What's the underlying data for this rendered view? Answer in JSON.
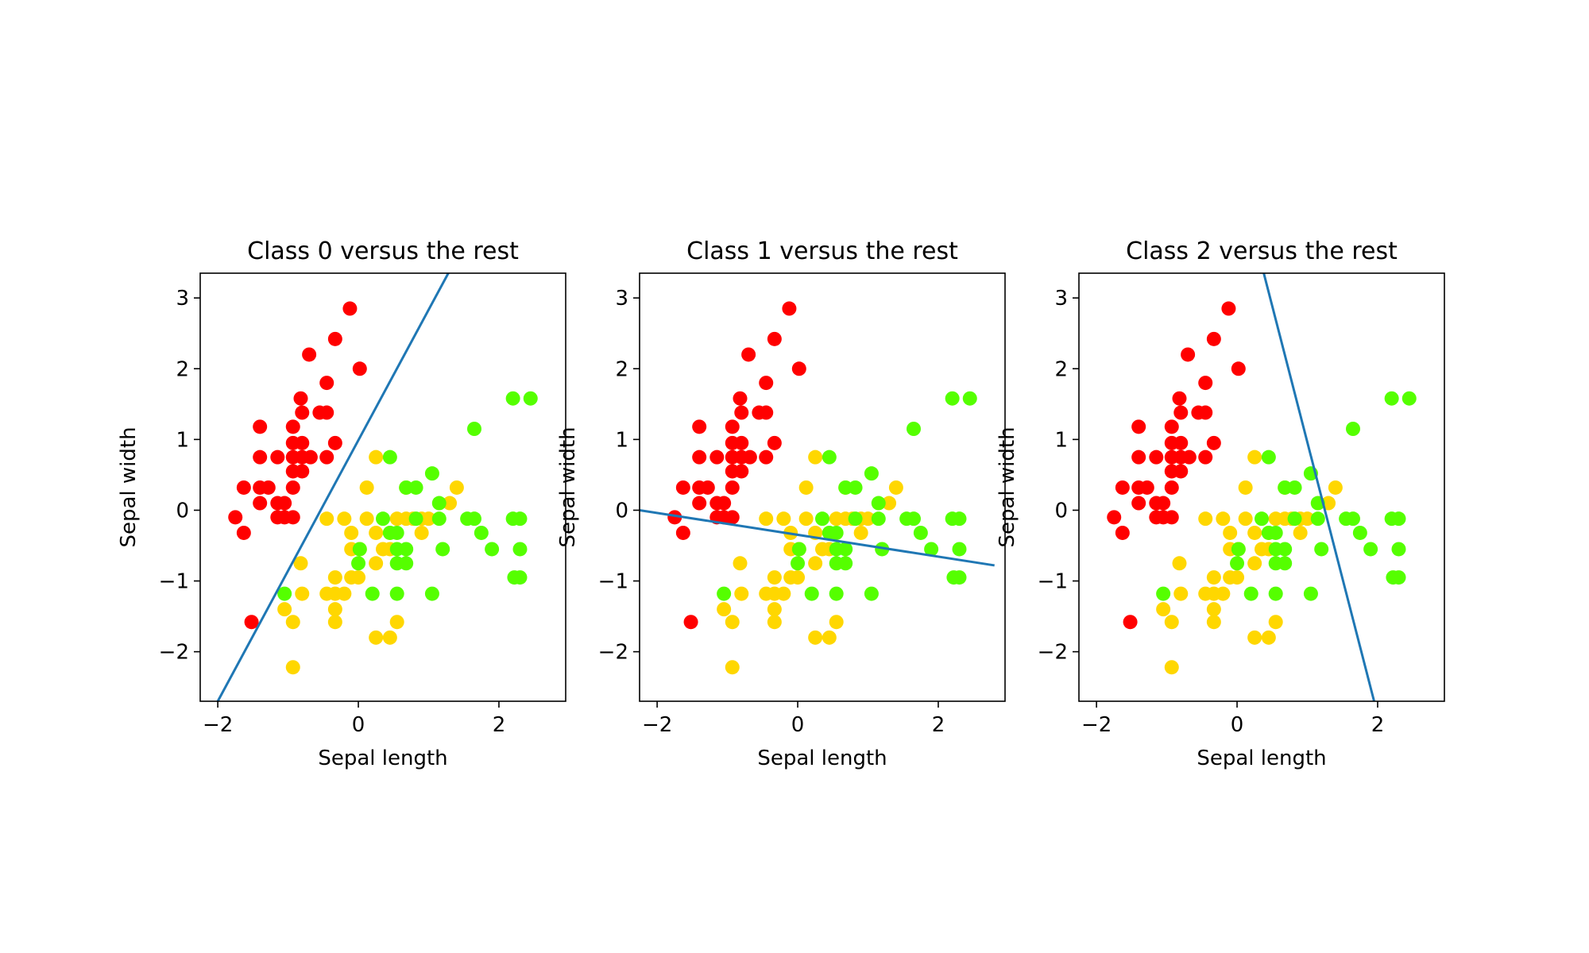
{
  "chart_data": [
    {
      "type": "scatter",
      "title": "Class 0 versus the rest",
      "xlabel": "Sepal length",
      "ylabel": "Sepal width",
      "xlim": [
        -2.25,
        2.95
      ],
      "ylim": [
        -2.7,
        3.35
      ],
      "xticks": [
        -2,
        0,
        2
      ],
      "xtick_labels": [
        "−2",
        "0",
        "2"
      ],
      "yticks": [
        -2,
        -1,
        0,
        1,
        2,
        3
      ],
      "ytick_labels": [
        "−2",
        "−1",
        "0",
        "1",
        "2",
        "3"
      ],
      "grid": false,
      "boundary_line": {
        "x1": -2.0,
        "y1": -2.7,
        "x2": 1.28,
        "y2": 3.35
      }
    },
    {
      "type": "scatter",
      "title": "Class 1 versus the rest",
      "xlabel": "Sepal length",
      "ylabel": "Sepal width",
      "xlim": [
        -2.25,
        2.95
      ],
      "ylim": [
        -2.7,
        3.35
      ],
      "xticks": [
        -2,
        0,
        2
      ],
      "xtick_labels": [
        "−2",
        "0",
        "2"
      ],
      "yticks": [
        -2,
        -1,
        0,
        1,
        2,
        3
      ],
      "ytick_labels": [
        "−2",
        "−1",
        "0",
        "1",
        "2",
        "3"
      ],
      "grid": false,
      "boundary_line": {
        "x1": -2.25,
        "y1": 0.0,
        "x2": 2.8,
        "y2": -0.78
      }
    },
    {
      "type": "scatter",
      "title": "Class 2 versus the rest",
      "xlabel": "Sepal length",
      "ylabel": "Sepal width",
      "xlim": [
        -2.25,
        2.95
      ],
      "ylim": [
        -2.7,
        3.35
      ],
      "xticks": [
        -2,
        0,
        2
      ],
      "xtick_labels": [
        "−2",
        "0",
        "2"
      ],
      "yticks": [
        -2,
        -1,
        0,
        1,
        2,
        3
      ],
      "ytick_labels": [
        "−2",
        "−1",
        "0",
        "1",
        "2",
        "3"
      ],
      "grid": false,
      "boundary_line": {
        "x1": 0.38,
        "y1": 3.35,
        "x2": 1.95,
        "y2": -2.7
      }
    }
  ],
  "shared_points": {
    "description_units": "sepal length, sepal width (standardized)",
    "class0": [
      [
        -0.12,
        2.85
      ],
      [
        0.02,
        2.0
      ],
      [
        -0.33,
        2.42
      ],
      [
        -0.7,
        2.2
      ],
      [
        -0.45,
        1.8
      ],
      [
        -0.82,
        1.58
      ],
      [
        -0.8,
        1.38
      ],
      [
        -0.55,
        1.38
      ],
      [
        -0.45,
        1.38
      ],
      [
        -1.4,
        1.18
      ],
      [
        -0.93,
        1.18
      ],
      [
        -0.93,
        0.95
      ],
      [
        -0.8,
        0.95
      ],
      [
        -0.33,
        0.95
      ],
      [
        -1.4,
        0.75
      ],
      [
        -1.15,
        0.75
      ],
      [
        -0.93,
        0.75
      ],
      [
        -0.8,
        0.75
      ],
      [
        -0.68,
        0.75
      ],
      [
        -0.45,
        0.75
      ],
      [
        -0.93,
        0.55
      ],
      [
        -0.8,
        0.55
      ],
      [
        -1.63,
        0.32
      ],
      [
        -1.4,
        0.32
      ],
      [
        -1.28,
        0.32
      ],
      [
        -0.93,
        0.32
      ],
      [
        -1.4,
        0.1
      ],
      [
        -1.15,
        0.1
      ],
      [
        -1.05,
        0.1
      ],
      [
        -1.15,
        -0.1
      ],
      [
        -1.05,
        -0.1
      ],
      [
        -0.93,
        -0.1
      ],
      [
        -1.75,
        -0.1
      ],
      [
        -1.63,
        -0.32
      ],
      [
        -1.52,
        -1.58
      ]
    ],
    "class1": [
      [
        0.25,
        0.75
      ],
      [
        0.12,
        0.32
      ],
      [
        0.68,
        0.32
      ],
      [
        -0.45,
        -0.12
      ],
      [
        -0.2,
        -0.12
      ],
      [
        0.12,
        -0.12
      ],
      [
        0.55,
        -0.12
      ],
      [
        0.9,
        -0.12
      ],
      [
        1.0,
        -0.12
      ],
      [
        -0.1,
        -0.32
      ],
      [
        0.25,
        -0.32
      ],
      [
        0.45,
        -0.32
      ],
      [
        0.9,
        -0.32
      ],
      [
        0.02,
        -0.55
      ],
      [
        0.35,
        -0.55
      ],
      [
        0.45,
        -0.55
      ],
      [
        -0.82,
        -0.75
      ],
      [
        0.25,
        -0.75
      ],
      [
        0.0,
        -0.95
      ],
      [
        -0.33,
        -0.95
      ],
      [
        -0.1,
        -0.95
      ],
      [
        -0.33,
        -1.18
      ],
      [
        -0.2,
        -1.18
      ],
      [
        -0.8,
        -1.18
      ],
      [
        -0.33,
        -1.4
      ],
      [
        -0.45,
        -1.18
      ],
      [
        -1.05,
        -1.4
      ],
      [
        -0.93,
        -1.58
      ],
      [
        -0.33,
        -1.58
      ],
      [
        0.25,
        -1.8
      ],
      [
        0.45,
        -1.8
      ],
      [
        0.55,
        -1.58
      ],
      [
        -0.93,
        -2.22
      ],
      [
        1.3,
        0.1
      ],
      [
        1.4,
        0.32
      ],
      [
        0.68,
        -0.12
      ],
      [
        0.78,
        -0.12
      ],
      [
        -0.1,
        -0.55
      ]
    ],
    "class2": [
      [
        1.65,
        1.15
      ],
      [
        2.2,
        1.58
      ],
      [
        2.45,
        1.58
      ],
      [
        1.05,
        0.52
      ],
      [
        0.45,
        0.75
      ],
      [
        0.82,
        0.32
      ],
      [
        0.68,
        0.32
      ],
      [
        1.15,
        0.1
      ],
      [
        1.55,
        -0.12
      ],
      [
        1.65,
        -0.12
      ],
      [
        2.2,
        -0.12
      ],
      [
        2.3,
        -0.12
      ],
      [
        0.35,
        -0.12
      ],
      [
        0.82,
        -0.12
      ],
      [
        1.15,
        -0.12
      ],
      [
        0.55,
        -0.32
      ],
      [
        1.75,
        -0.32
      ],
      [
        0.02,
        -0.55
      ],
      [
        0.55,
        -0.55
      ],
      [
        0.68,
        -0.55
      ],
      [
        1.2,
        -0.55
      ],
      [
        1.9,
        -0.55
      ],
      [
        2.3,
        -0.55
      ],
      [
        0.0,
        -0.75
      ],
      [
        0.55,
        -0.75
      ],
      [
        0.68,
        -0.75
      ],
      [
        2.3,
        -0.95
      ],
      [
        -1.05,
        -1.18
      ],
      [
        0.2,
        -1.18
      ],
      [
        0.55,
        -1.18
      ],
      [
        1.05,
        -1.18
      ],
      [
        2.22,
        -0.95
      ],
      [
        0.45,
        -0.32
      ]
    ]
  },
  "colors": {
    "class0": "#ff0000",
    "class1": "#ffd700",
    "class2": "#55ff00",
    "boundary": "#1f77b4",
    "axes": "#000000"
  }
}
